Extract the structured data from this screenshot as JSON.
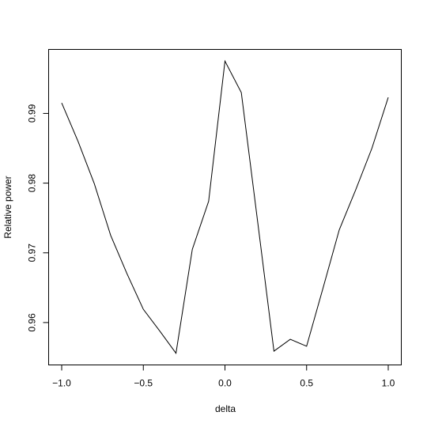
{
  "chart_data": {
    "type": "line",
    "x_label": "delta",
    "y_label": "Relative power",
    "x": [
      -1.0,
      -0.9,
      -0.8,
      -0.7,
      -0.6,
      -0.5,
      -0.4,
      -0.3,
      -0.2,
      -0.1,
      0.0,
      0.1,
      0.2,
      0.3,
      0.4,
      0.5,
      0.6,
      0.7,
      0.8,
      0.9,
      1.0
    ],
    "values": [
      0.9915,
      0.986,
      0.9799,
      0.9725,
      0.967,
      0.9619,
      0.9588,
      0.9556,
      0.9705,
      0.9774,
      0.9975,
      0.993,
      0.9745,
      0.9559,
      0.9576,
      0.9566,
      0.9649,
      0.9733,
      0.979,
      0.985,
      0.9923
    ],
    "color": "#000000",
    "xlim": [
      -1.08,
      1.08
    ],
    "ylim": [
      0.95392,
      0.99918
    ],
    "xticks": [
      {
        "value": -1.0,
        "label": "−1.0"
      },
      {
        "value": -0.5,
        "label": "−0.5"
      },
      {
        "value": 0.0,
        "label": "0.0"
      },
      {
        "value": 0.5,
        "label": "0.5"
      },
      {
        "value": 1.0,
        "label": "1.0"
      }
    ],
    "yticks": [
      0.96,
      0.97,
      0.98,
      0.99
    ]
  }
}
